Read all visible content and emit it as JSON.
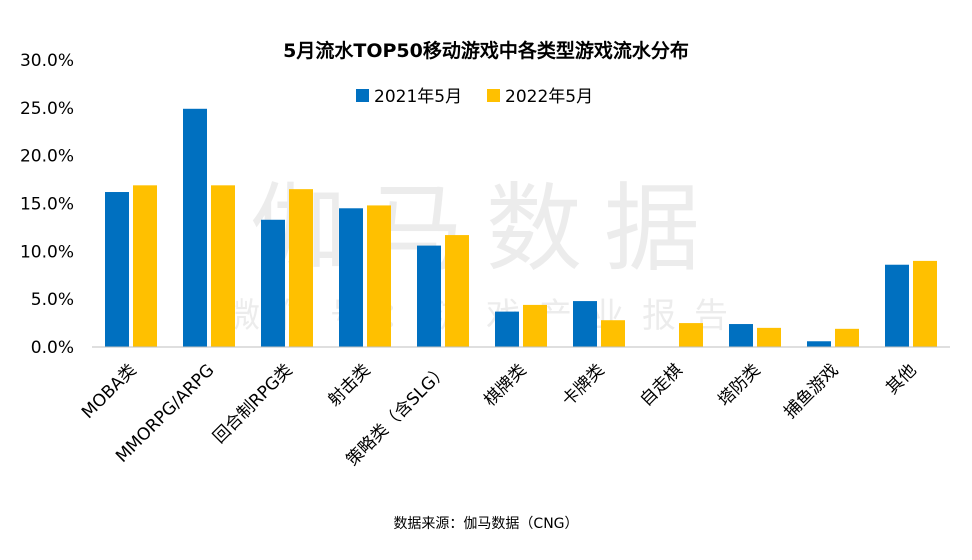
{
  "chart_data": {
    "type": "bar",
    "title": "5月流水TOP50移动游戏中各类型游戏流水分布",
    "categories": [
      "MOBA类",
      "MMORPG/ARPG",
      "回合制RPG类",
      "射击类",
      "策略类（含SLG）",
      "棋牌类",
      "卡牌类",
      "自走棋",
      "塔防类",
      "捕鱼游戏",
      "其他"
    ],
    "series": [
      {
        "name": "2021年5月",
        "values": [
          16.2,
          24.9,
          13.3,
          14.5,
          10.6,
          3.7,
          4.8,
          0.0,
          2.4,
          0.6,
          8.6
        ]
      },
      {
        "name": "2022年5月",
        "values": [
          16.9,
          16.9,
          16.5,
          14.8,
          11.7,
          4.4,
          2.8,
          2.5,
          2.0,
          1.9,
          9.0
        ]
      }
    ],
    "yticks": [
      "0.0%",
      "5.0%",
      "10.0%",
      "15.0%",
      "20.0%",
      "25.0%",
      "30.0%"
    ],
    "ylim": [
      0,
      30
    ],
    "grid": false,
    "legend_position": "top-center"
  },
  "colors": {
    "series_2021": "#0070C0",
    "series_2022": "#FFC000",
    "axis": "#BFBFBF"
  },
  "watermark": {
    "main": "伽马数据",
    "sub": "微信号：游戏产业报告"
  },
  "source": "数据来源：伽马数据（CNG）"
}
